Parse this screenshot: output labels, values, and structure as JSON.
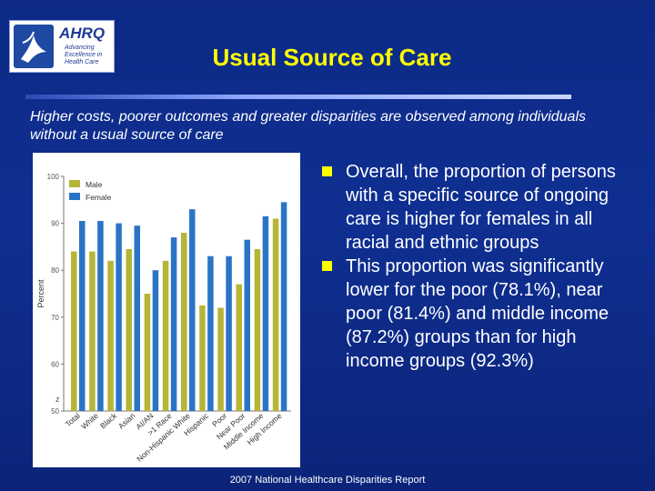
{
  "header": {
    "logo_text": "AHRQ",
    "logo_tagline": "Advancing Excellence in Health Care",
    "title": "Usual Source of Care"
  },
  "subtitle": "Higher costs, poorer outcomes and greater disparities are observed among individuals without a usual source of care",
  "bullets": [
    "Overall, the proportion of persons with a specific source of ongoing care is higher for females in all racial and ethnic groups",
    "This proportion was significantly lower for the poor (78.1%), near poor (81.4%) and middle income (87.2%) groups than for high income groups (92.3%)"
  ],
  "footer": "2007 National Healthcare Disparities Report",
  "colors": {
    "title": "#ffff00",
    "male": "#b5b537",
    "female": "#2a74c6",
    "bullet_marker": "#ffff00"
  },
  "chart_data": {
    "type": "bar",
    "categories": [
      "Total",
      "White",
      "Black",
      "Asian",
      "AI/AN",
      ">1 Race",
      "Non-Hispanic White",
      "Hispanic",
      "Poor",
      "Near Poor",
      "Middle Income",
      "High Income"
    ],
    "series": [
      {
        "name": "Male",
        "values": [
          84,
          84,
          82,
          84.5,
          75,
          82,
          88,
          72.5,
          72,
          77,
          84.5,
          91
        ]
      },
      {
        "name": "Female",
        "values": [
          90.5,
          90.5,
          90,
          89.5,
          80,
          87,
          93,
          83,
          83,
          86.5,
          91.5,
          94.5
        ]
      }
    ],
    "ylabel": "Percent",
    "ylim": [
      50,
      100
    ],
    "yticks": [
      50,
      60,
      70,
      80,
      90,
      100
    ],
    "axis_break_label": "z",
    "legend_position": "top-left"
  }
}
